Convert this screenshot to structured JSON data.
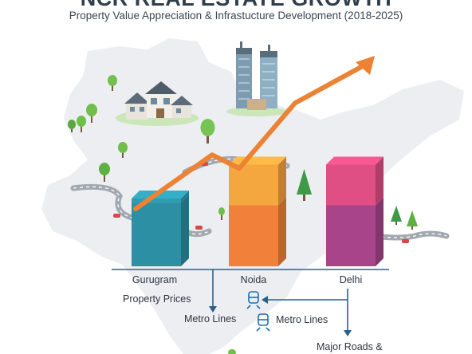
{
  "title": "NCR REAL ESTATE GROWTH",
  "subtitle": "Property Value Appreciation & Infrastucture Development (2018-2025)",
  "colors": {
    "map": "#eceef1",
    "road": "#9aa0a8",
    "trend": "#ec8233",
    "axis": "#2b5f8f",
    "tree": "#6fbf4a"
  },
  "chart_data": {
    "type": "bar",
    "categories": [
      "Gurugram",
      "Noida",
      "Delhi"
    ],
    "series": [
      {
        "values": [
          4.7,
          4.5,
          4.5
        ],
        "colors": [
          "#2c8fa3",
          "#f0803a",
          "#a8458a"
        ]
      },
      {
        "values": [
          0.3,
          3.0,
          3.0
        ],
        "colors": [
          "#2e9cb2",
          "#f4a63f",
          "#df4f84"
        ]
      }
    ],
    "trend_line": [
      3.2,
      5.6,
      5.0,
      7.9,
      10.0
    ],
    "ylim": [
      0,
      10
    ],
    "grid": false,
    "legend": [
      {
        "text": "Property Prices",
        "icon": "none"
      },
      {
        "text": "Metro Lines",
        "icon": "arrow-down-icon"
      },
      {
        "text": "Metro Lines",
        "icon": "metro-train-icon"
      },
      {
        "text": "Major Roads &",
        "icon": "none"
      }
    ]
  }
}
